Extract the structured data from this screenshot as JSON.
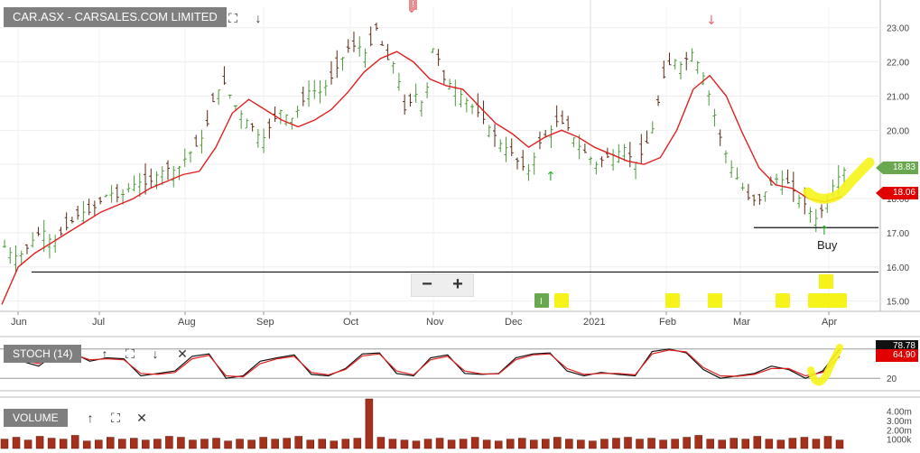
{
  "header": {
    "title": "CAR.ASX - CARSALES.COM LIMITED",
    "flag_label": "!"
  },
  "indicators": {
    "stoch_label": "STOCH (14)",
    "volume_label": "VOLUME",
    "stoch_values": [
      "78.78",
      "64.90"
    ],
    "stoch_level": "20",
    "volume_ticks": [
      "4.00m",
      "3.00m",
      "2.00m",
      "1000k"
    ]
  },
  "price_tags": {
    "current": "18.83",
    "ma": "18.06"
  },
  "annotations": {
    "buy_label": "Buy"
  },
  "colors": {
    "up_bar": "#4c9a3a",
    "down_bar": "#5a2a12",
    "ma_line": "#e02020",
    "highlight": "#f6f31a",
    "price_tag_green": "#6aa84f",
    "price_tag_red": "#e00000",
    "volume_bar": "#a5301c"
  },
  "chart_data": {
    "type": "ohlc",
    "x_ticks": [
      "Jun",
      "Jul",
      "Aug",
      "Sep",
      "Oct",
      "Nov",
      "Dec",
      "2021",
      "Feb",
      "Mar",
      "Apr"
    ],
    "y_ticks": [
      "23.00",
      "22.00",
      "21.00",
      "20.00",
      "19.00",
      "18.00",
      "17.00",
      "16.00",
      "15.00"
    ],
    "ylim": [
      14.7,
      23.6
    ],
    "close_path": [
      16.6,
      16.3,
      16.4,
      16.8,
      17.1,
      16.7,
      17.0,
      17.3,
      17.6,
      17.6,
      17.9,
      18.2,
      18.0,
      18.3,
      18.5,
      18.4,
      18.7,
      18.9,
      18.8,
      19.2,
      19.5,
      19.9,
      21.0,
      21.4,
      20.8,
      20.4,
      20.1,
      19.7,
      20.2,
      20.6,
      20.3,
      20.7,
      21.2,
      21.1,
      21.4,
      21.9,
      22.4,
      22.5,
      22.2,
      23.0,
      22.1,
      21.9,
      20.5,
      21.1,
      20.7,
      22.6,
      21.5,
      21.3,
      21.0,
      20.7,
      20.4,
      20.0,
      19.6,
      19.4,
      19.0,
      18.8,
      19.6,
      19.9,
      20.3,
      20.1,
      19.6,
      19.3,
      19.0,
      19.2,
      19.3,
      19.5,
      19.0,
      19.4,
      20.1,
      21.5,
      22.1,
      21.9,
      22.3,
      21.8,
      20.9,
      19.8,
      19.0,
      18.5,
      18.0,
      17.9,
      18.3,
      18.6,
      18.5,
      18.1,
      17.8,
      17.4,
      17.8,
      18.5,
      18.83
    ],
    "ma_path": [
      14.9,
      16.0,
      16.4,
      16.7,
      17.0,
      17.3,
      17.6,
      17.8,
      18.0,
      18.3,
      18.5,
      18.7,
      18.8,
      19.5,
      20.5,
      20.9,
      20.6,
      20.3,
      20.1,
      20.3,
      20.6,
      21.1,
      21.7,
      22.1,
      22.3,
      22.0,
      21.5,
      21.3,
      21.2,
      20.7,
      20.2,
      19.9,
      19.5,
      19.8,
      20.0,
      19.8,
      19.5,
      19.3,
      19.1,
      19.0,
      19.2,
      20.0,
      21.2,
      21.6,
      21.0,
      19.9,
      18.9,
      18.4,
      18.3,
      18.0,
      17.9,
      18.06
    ],
    "support_lines": [
      15.85,
      17.15
    ],
    "stoch_k_path": [
      60,
      55,
      45,
      70,
      72,
      55,
      62,
      60,
      25,
      30,
      35,
      65,
      70,
      20,
      25,
      55,
      62,
      68,
      28,
      25,
      40,
      70,
      72,
      30,
      25,
      62,
      68,
      30,
      28,
      30,
      62,
      70,
      72,
      35,
      25,
      32,
      28,
      25,
      75,
      80,
      72,
      38,
      20,
      25,
      30,
      45,
      38,
      20,
      35,
      79
    ],
    "stoch_d_path": [
      62,
      57,
      50,
      67,
      70,
      58,
      60,
      58,
      30,
      28,
      32,
      60,
      67,
      25,
      23,
      50,
      60,
      65,
      32,
      27,
      38,
      66,
      70,
      35,
      27,
      58,
      65,
      35,
      29,
      29,
      58,
      68,
      70,
      40,
      28,
      30,
      30,
      27,
      70,
      78,
      74,
      42,
      25,
      24,
      28,
      40,
      40,
      25,
      32,
      65
    ],
    "volume": [
      1.0,
      1.2,
      0.9,
      1.3,
      1.1,
      1.0,
      1.4,
      0.8,
      0.9,
      1.2,
      1.0,
      1.1,
      0.9,
      1.0,
      1.3,
      1.2,
      0.9,
      1.0,
      1.1,
      0.8,
      1.0,
      0.9,
      1.2,
      1.0,
      1.1,
      1.3,
      0.9,
      1.0,
      0.8,
      1.0,
      1.1,
      5.3,
      1.2,
      1.0,
      0.9,
      0.8,
      1.0,
      1.1,
      0.9,
      1.0,
      1.2,
      0.9,
      0.8,
      1.0,
      1.1,
      0.9,
      1.0,
      1.2,
      1.0,
      0.9,
      0.8,
      1.0,
      1.1,
      1.2,
      1.0,
      1.1,
      0.9,
      1.0,
      1.2,
      1.4,
      1.0,
      0.9,
      1.1,
      1.0,
      1.3,
      1.0,
      0.9,
      1.1,
      1.2,
      1.0,
      1.3,
      0.9
    ]
  }
}
